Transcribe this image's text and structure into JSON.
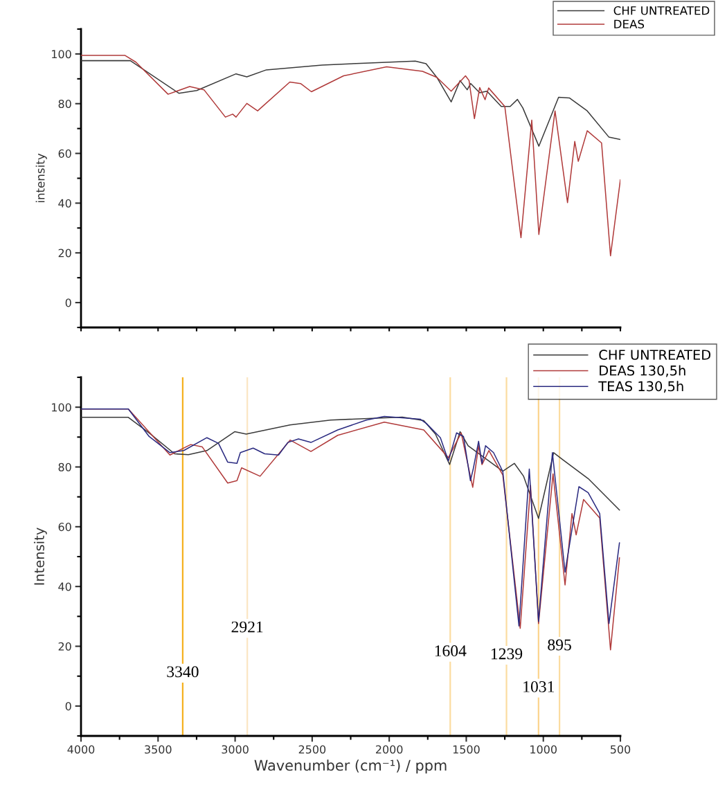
{
  "chart_data": [
    {
      "type": "line",
      "ylabel": "intensity",
      "xlim": [
        4000,
        500
      ],
      "ylim": [
        -10,
        110
      ],
      "yticks": [
        0,
        20,
        40,
        60,
        80,
        100,
        {
          "value": -10,
          "label": null
        },
        {
          "value": 10,
          "label": null
        },
        {
          "value": 30,
          "label": null
        },
        {
          "value": 50,
          "label": null
        },
        {
          "value": 70,
          "label": null
        },
        {
          "value": 90,
          "label": null
        },
        {
          "value": 110,
          "label": null
        }
      ],
      "xticks": [
        {
          "value": 4000,
          "label": null
        },
        {
          "value": 3750,
          "label": null
        },
        {
          "value": 3500,
          "label": null
        },
        {
          "value": 3250,
          "label": null
        },
        {
          "value": 3000,
          "label": null
        },
        {
          "value": 2750,
          "label": null
        },
        {
          "value": 2500,
          "label": null
        },
        {
          "value": 2250,
          "label": null
        },
        {
          "value": 2000,
          "label": null
        },
        {
          "value": 1750,
          "label": null
        },
        {
          "value": 1500,
          "label": null
        },
        {
          "value": 1250,
          "label": null
        },
        {
          "value": 1000,
          "label": null
        },
        {
          "value": 750,
          "label": null
        },
        {
          "value": 500,
          "label": null
        }
      ],
      "tick_labels": "y",
      "grid": false,
      "legend": "top right",
      "marker": "none",
      "line_style": "solid",
      "series": [
        {
          "name": "CHF UNTREATED",
          "color": "#3a3a3a",
          "x": [
            4000,
            3680,
            3365,
            3249,
            2994,
            2924,
            2797,
            2435,
            2157,
            1831,
            1761,
            1691,
            1598,
            1540,
            1494,
            1471,
            1413,
            1366,
            1273,
            1215,
            1168,
            1133,
            1029,
            901,
            831,
            715,
            575,
            500
          ],
          "values": [
            97.3,
            97.3,
            84.2,
            85.3,
            92.0,
            90.8,
            93.6,
            95.5,
            96.3,
            97.1,
            96.1,
            90.6,
            80.7,
            89.3,
            85.6,
            88.1,
            84.4,
            85.0,
            78.9,
            78.9,
            81.7,
            78.3,
            62.9,
            82.6,
            82.3,
            77.1,
            66.6,
            65.6
          ]
        },
        {
          "name": "DEAS",
          "color": "#b03a3a",
          "x": [
            4000,
            3714,
            3644,
            3435,
            3295,
            3202,
            3063,
            3016,
            2994,
            2924,
            2854,
            2645,
            2575,
            2505,
            2296,
            2017,
            1784,
            1691,
            1598,
            1505,
            1482,
            1447,
            1413,
            1378,
            1355,
            1250,
            1145,
            1075,
            1029,
            924,
            843,
            796,
            773,
            715,
            622,
            564,
            500
          ],
          "values": [
            99.4,
            99.4,
            96.7,
            83.8,
            86.9,
            85.6,
            74.6,
            75.8,
            74.6,
            80.1,
            77.1,
            88.7,
            88.1,
            84.8,
            91.2,
            94.8,
            93.0,
            90.6,
            85.0,
            91.2,
            89.3,
            74.0,
            86.5,
            81.6,
            86.3,
            78.9,
            26.1,
            73.4,
            27.4,
            77.1,
            40.2,
            64.8,
            56.8,
            69.1,
            64.2,
            18.8,
            49.4
          ]
        }
      ]
    },
    {
      "type": "line",
      "xlabel": "Wavenumber (cm⁻¹) / ppm",
      "ylabel": "Intensity",
      "xlim": [
        4000,
        500
      ],
      "ylim": [
        -10,
        110
      ],
      "xticks": [
        4000,
        3500,
        3000,
        2500,
        2000,
        1500,
        1000,
        500,
        {
          "value": 3750,
          "label": null
        },
        {
          "value": 3250,
          "label": null
        },
        {
          "value": 2750,
          "label": null
        },
        {
          "value": 2250,
          "label": null
        },
        {
          "value": 1750,
          "label": null
        },
        {
          "value": 1250,
          "label": null
        },
        {
          "value": 750,
          "label": null
        }
      ],
      "yticks": [
        0,
        20,
        40,
        60,
        80,
        100,
        {
          "value": -10,
          "label": null
        },
        {
          "value": 10,
          "label": null
        },
        {
          "value": 30,
          "label": null
        },
        {
          "value": 50,
          "label": null
        },
        {
          "value": 70,
          "label": null
        },
        {
          "value": 90,
          "label": null
        },
        {
          "value": 110,
          "label": null
        }
      ],
      "grid": false,
      "legend": "top right",
      "marker": "none",
      "line_style": "solid",
      "ref_lines": [
        {
          "axis": "x",
          "value": 3340,
          "color": "#f5b01e"
        },
        {
          "axis": "x",
          "value": 2921,
          "color": "#fbe6c4"
        },
        {
          "axis": "x",
          "value": 1604,
          "color": "#fbdca0"
        },
        {
          "axis": "x",
          "value": 1239,
          "color": "#fbdca0"
        },
        {
          "axis": "x",
          "value": 1031,
          "color": "#fbd48c"
        },
        {
          "axis": "x",
          "value": 895,
          "color": "#fbdca0"
        }
      ],
      "annotations": [
        {
          "text": "3340",
          "x": 3340,
          "y": 11
        },
        {
          "text": "2921",
          "x": 2921,
          "y": 26
        },
        {
          "text": "1604",
          "x": 1604,
          "y": 18
        },
        {
          "text": "1239",
          "x": 1239,
          "y": 17
        },
        {
          "text": "1031",
          "x": 1031,
          "y": 6
        },
        {
          "text": "895",
          "x": 895,
          "y": 20
        }
      ],
      "series": [
        {
          "name": "CHF UNTREATED",
          "color": "#3a3a3a",
          "x": [
            4000,
            3693,
            3558,
            3393,
            3303,
            3183,
            3003,
            2928,
            2643,
            2380,
            1915,
            1776,
            1700,
            1608,
            1540,
            1488,
            1263,
            1188,
            1128,
            1031,
            933,
            873,
            709,
            506
          ],
          "values": [
            96.6,
            96.6,
            91.4,
            84.4,
            84.1,
            85.5,
            91.8,
            91.0,
            94.1,
            95.7,
            96.7,
            95.5,
            91.0,
            80.8,
            91.8,
            87.1,
            78.6,
            81.2,
            76.9,
            62.8,
            84.8,
            82.4,
            76.1,
            65.6
          ]
        },
        {
          "name": "DEAS 130,5h",
          "color": "#b03a3a",
          "x": [
            4000,
            3693,
            3423,
            3288,
            3213,
            3048,
            2988,
            2958,
            2838,
            2643,
            2508,
            2334,
            2032,
            1776,
            1616,
            1533,
            1458,
            1420,
            1398,
            1353,
            1263,
            1150,
            1083,
            1031,
            937,
            859,
            814,
            787,
            739,
            634,
            564,
            506
          ],
          "values": [
            99.4,
            99.4,
            84.0,
            87.5,
            86.7,
            74.6,
            75.4,
            79.7,
            76.9,
            89.0,
            85.2,
            90.6,
            95.0,
            92.4,
            83.1,
            91.4,
            73.2,
            87.1,
            80.8,
            85.5,
            77.3,
            26.0,
            73.8,
            27.6,
            77.7,
            40.5,
            64.4,
            57.3,
            69.1,
            62.9,
            18.8,
            49.6
          ]
        },
        {
          "name": "TEAS 130,5h",
          "color": "#2a2a80",
          "x": [
            4000,
            3693,
            3558,
            3423,
            3333,
            3183,
            3108,
            3048,
            2988,
            2966,
            2883,
            2808,
            2718,
            2658,
            2589,
            2508,
            2334,
            2148,
            2032,
            1799,
            1758,
            1668,
            1616,
            1563,
            1518,
            1473,
            1455,
            1420,
            1398,
            1375,
            1323,
            1263,
            1158,
            1091,
            1031,
            941,
            859,
            769,
            709,
            634,
            574,
            506
          ],
          "values": [
            99.4,
            99.4,
            90.2,
            84.8,
            85.5,
            89.8,
            87.9,
            81.6,
            81.2,
            84.8,
            86.3,
            84.4,
            84.0,
            88.2,
            89.4,
            88.2,
            92.4,
            95.7,
            96.9,
            96.0,
            94.5,
            89.8,
            82.0,
            91.4,
            90.2,
            75.4,
            79.3,
            88.6,
            81.2,
            87.1,
            84.8,
            78.5,
            26.8,
            79.3,
            28.3,
            84.8,
            44.8,
            73.4,
            71.4,
            64.4,
            27.6,
            54.6
          ]
        }
      ]
    }
  ]
}
